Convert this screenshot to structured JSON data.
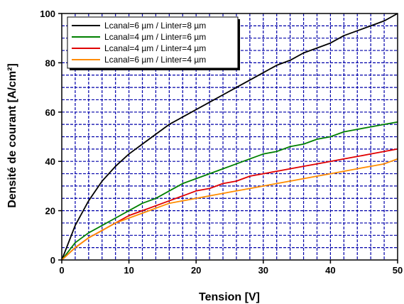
{
  "chart_data": {
    "type": "line",
    "xlabel": "Tension [V]",
    "ylabel": "Densité de courant [A/cm²]",
    "xlim": [
      0,
      50
    ],
    "ylim": [
      0,
      100
    ],
    "x_ticks": [
      0,
      10,
      20,
      30,
      40,
      50
    ],
    "y_ticks": [
      0,
      20,
      40,
      60,
      80,
      100
    ],
    "x_minor_step": 2,
    "y_minor_step": 5,
    "grid": true,
    "grid_color": "#0000aa",
    "legend_position": "top-left",
    "x": [
      0,
      2,
      4,
      6,
      8,
      10,
      12,
      14,
      16,
      18,
      20,
      22,
      24,
      26,
      28,
      30,
      32,
      34,
      36,
      38,
      40,
      42,
      44,
      46,
      48,
      50
    ],
    "series": [
      {
        "name": "Lcanal=6 µm / Linter=8 µm",
        "color": "#000000",
        "values": [
          0,
          14,
          24,
          32,
          38,
          43,
          47,
          51,
          55,
          58,
          61,
          64,
          67,
          70,
          73,
          76,
          79,
          81,
          84,
          86,
          88,
          91,
          93,
          95,
          97,
          100
        ]
      },
      {
        "name": "Lcanal=4 µm / Linter=6 µm",
        "color": "#008000",
        "values": [
          0,
          7,
          11,
          14,
          17,
          20,
          23,
          25,
          28,
          31,
          33,
          35,
          37,
          39,
          41,
          43,
          44,
          46,
          47,
          49,
          50,
          52,
          53,
          54,
          55,
          56
        ]
      },
      {
        "name": "Lcanal=4 µm / Linter=4 µm",
        "color": "#e00000",
        "values": [
          0,
          5,
          9,
          12,
          15,
          18,
          20,
          22,
          24,
          26,
          28,
          29,
          31,
          32,
          34,
          35,
          36,
          37,
          38,
          39,
          40,
          41,
          42,
          43,
          44,
          45
        ]
      },
      {
        "name": "Lcanal=6 µm / Linter=4 µm",
        "color": "#ff8c00",
        "values": [
          0,
          5,
          9,
          12,
          15,
          17,
          19,
          21,
          23,
          24,
          25,
          26,
          27,
          28,
          29,
          30,
          31,
          32,
          33,
          34,
          35,
          36,
          37,
          38,
          39,
          41
        ]
      }
    ]
  }
}
